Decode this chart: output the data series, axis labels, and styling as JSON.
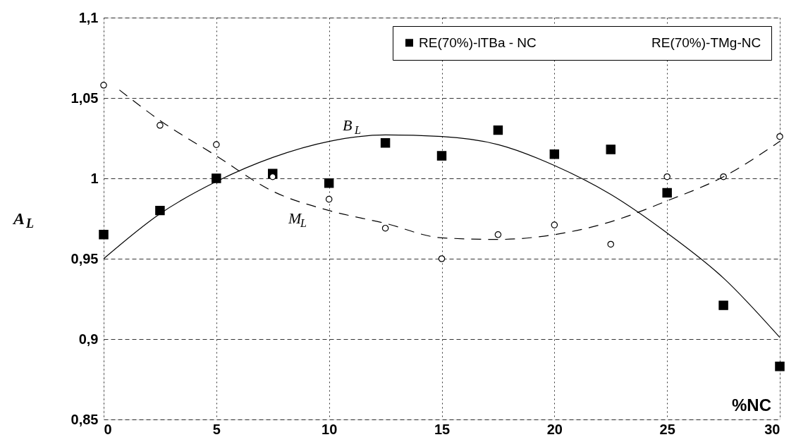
{
  "chart_data": {
    "type": "scatter",
    "xlabel": "%NC",
    "ylabel": "A$_{L}$",
    "xlim": [
      0,
      30
    ],
    "xticks": [
      0,
      5,
      10,
      15,
      20,
      25,
      30
    ],
    "ylim": [
      0.85,
      1.1
    ],
    "yticks": [
      {
        "value": 0.85,
        "label": "0,85"
      },
      {
        "value": 0.9,
        "label": "0,9"
      },
      {
        "value": 0.95,
        "label": "0,95"
      },
      {
        "value": 1,
        "label": "1"
      },
      {
        "value": 1.05,
        "label": "1,05"
      },
      {
        "value": 1.1,
        "label": "1,1"
      }
    ],
    "grid": true,
    "legend": "top right",
    "series": [
      {
        "name": "RE(70%)-lTBa - NC",
        "marker": "square",
        "color": "#000000",
        "x": [
          0,
          2.5,
          5,
          7.5,
          10,
          12.5,
          15,
          17.5,
          20,
          22.5,
          25,
          27.5,
          30
        ],
        "values": [
          0.965,
          0.98,
          1.0,
          1.003,
          0.997,
          1.022,
          1.014,
          1.03,
          1.015,
          1.018,
          0.991,
          0.921,
          0.883
        ]
      },
      {
        "name": "RE(70%)-TMg-NC",
        "marker": "circle",
        "color": "#000000",
        "x": [
          0,
          2.5,
          5,
          7.5,
          10,
          12.5,
          15,
          17.5,
          20,
          22.5,
          25,
          27.5,
          30
        ],
        "values": [
          1.058,
          1.033,
          1.021,
          1.001,
          0.987,
          0.969,
          0.95,
          0.965,
          0.971,
          0.959,
          1.001,
          1.001,
          1.026
        ]
      },
      {
        "type": "line",
        "line_style": "solid",
        "color": "#000000",
        "x": [
          0,
          2.5,
          5,
          7.5,
          10,
          12.5,
          15,
          17.5,
          20,
          22.5,
          25,
          27.5,
          30
        ],
        "values": [
          0.95,
          0.978,
          0.998,
          1.013,
          1.023,
          1.027,
          1.026,
          1.021,
          1.008,
          0.99,
          0.966,
          0.938,
          0.901
        ]
      },
      {
        "type": "line",
        "line_style": "dashed",
        "color": "#000000",
        "x": [
          0.7,
          2.5,
          5,
          7.5,
          10,
          12.5,
          15,
          17.5,
          20,
          22.5,
          25,
          27.5,
          30
        ],
        "values": [
          1.055,
          1.036,
          1.014,
          0.992,
          0.98,
          0.972,
          0.963,
          0.962,
          0.965,
          0.973,
          0.986,
          1.001,
          1.023
        ]
      }
    ],
    "annotations": [
      "B$_{L}$",
      "M$_{L}$"
    ]
  }
}
